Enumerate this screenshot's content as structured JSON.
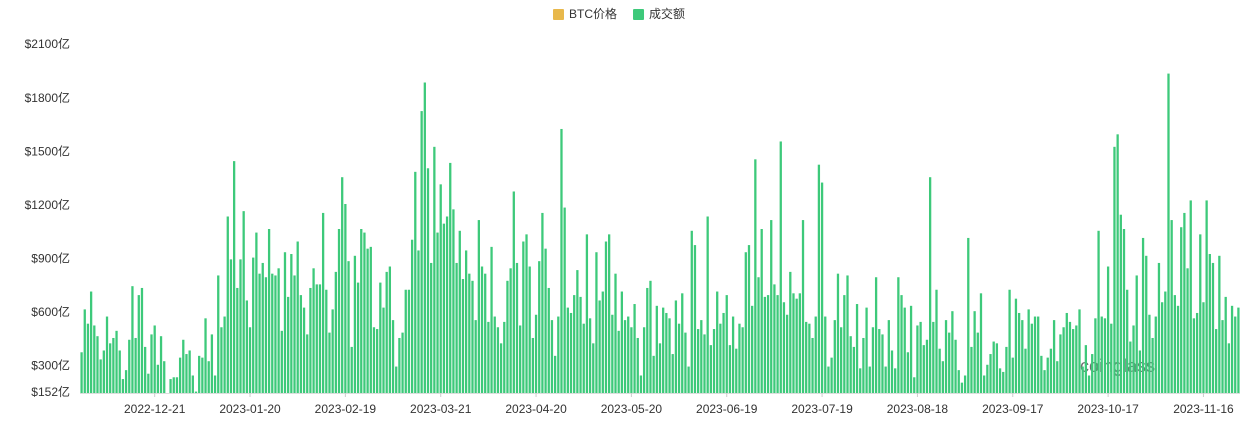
{
  "chart_data": {
    "type": "bar",
    "series": [
      {
        "name": "BTC价格",
        "color": "#e8b84b",
        "visible": false
      },
      {
        "name": "成交额",
        "color": "#3dc97a",
        "visible": true,
        "values": [
          380,
          620,
          540,
          720,
          530,
          470,
          340,
          390,
          580,
          430,
          460,
          500,
          390,
          230,
          280,
          450,
          750,
          460,
          700,
          740,
          410,
          260,
          480,
          530,
          310,
          470,
          330,
          152,
          230,
          240,
          240,
          350,
          450,
          370,
          390,
          250,
          160,
          360,
          350,
          570,
          330,
          480,
          250,
          810,
          520,
          580,
          1140,
          900,
          1450,
          740,
          900,
          1170,
          670,
          520,
          910,
          1050,
          820,
          880,
          800,
          1070,
          820,
          810,
          850,
          500,
          940,
          690,
          930,
          810,
          1000,
          700,
          630,
          480,
          740,
          850,
          760,
          760,
          1160,
          730,
          490,
          620,
          830,
          1070,
          1360,
          1210,
          890,
          410,
          920,
          770,
          1070,
          1050,
          960,
          970,
          520,
          510,
          770,
          630,
          830,
          860,
          560,
          300,
          460,
          490,
          730,
          730,
          1010,
          1390,
          950,
          1730,
          1890,
          1410,
          880,
          1530,
          1050,
          1320,
          1100,
          1140,
          1440,
          1180,
          880,
          1060,
          790,
          950,
          820,
          780,
          560,
          1120,
          860,
          820,
          550,
          970,
          580,
          520,
          430,
          550,
          780,
          850,
          1280,
          880,
          530,
          1000,
          1040,
          860,
          460,
          590,
          890,
          1160,
          960,
          740,
          560,
          360,
          580,
          1630,
          1190,
          630,
          600,
          700,
          840,
          690,
          540,
          1040,
          570,
          430,
          940,
          670,
          720,
          1000,
          1040,
          590,
          820,
          500,
          720,
          560,
          580,
          520,
          650,
          460,
          250,
          520,
          740,
          780,
          360,
          640,
          430,
          630,
          600,
          570,
          370,
          670,
          540,
          710,
          490,
          300,
          1060,
          980,
          510,
          560,
          480,
          1140,
          420,
          510,
          720,
          540,
          600,
          700,
          420,
          580,
          400,
          540,
          520,
          940,
          980,
          640,
          1460,
          800,
          1070,
          690,
          700,
          1120,
          760,
          700,
          1560,
          660,
          590,
          830,
          710,
          680,
          710,
          1120,
          550,
          540,
          460,
          580,
          1430,
          1330,
          580,
          300,
          350,
          560,
          820,
          520,
          700,
          810,
          470,
          410,
          650,
          290,
          460,
          630,
          300,
          520,
          800,
          510,
          480,
          300,
          560,
          390,
          290,
          800,
          700,
          630,
          380,
          640,
          240,
          530,
          550,
          420,
          450,
          1360,
          550,
          730,
          400,
          330,
          560,
          490,
          610,
          450,
          280,
          210,
          250,
          1020,
          410,
          610,
          490,
          710,
          250,
          310,
          370,
          440,
          430,
          290,
          270,
          410,
          730,
          350,
          680,
          600,
          560,
          400,
          620,
          540,
          580,
          580,
          360,
          280,
          350,
          400,
          560,
          330,
          480,
          520,
          600,
          550,
          510,
          530,
          620,
          300,
          420,
          250,
          370,
          570,
          1060,
          580,
          570,
          860,
          540,
          1530,
          1600,
          1150,
          1070,
          730,
          440,
          530,
          810,
          390,
          1020,
          920,
          590,
          460,
          580,
          880,
          660,
          720,
          1940,
          1120,
          700,
          640,
          1080,
          1160,
          850,
          1230,
          570,
          600,
          1040,
          660,
          1230,
          930,
          880,
          510,
          920,
          560,
          690,
          430,
          640,
          580,
          630
        ]
      }
    ],
    "categories": [
      null,
      null,
      null,
      null,
      null,
      null,
      null,
      null,
      null,
      null,
      null,
      null,
      null,
      null,
      null,
      null,
      null,
      null,
      null,
      null,
      null,
      null,
      null,
      "2022-12-21",
      null,
      null,
      null,
      null,
      null,
      null,
      null,
      null,
      null,
      null,
      null,
      null,
      null,
      null,
      null,
      null,
      null,
      null,
      null,
      null,
      null,
      null,
      null,
      null,
      null,
      null,
      null,
      null,
      null,
      "2023-01-20",
      null,
      null,
      null,
      null,
      null,
      null,
      null,
      null,
      null,
      null,
      null,
      null,
      null,
      null,
      null,
      null,
      null,
      null,
      null,
      null,
      null,
      null,
      null,
      null,
      null,
      null,
      null,
      null,
      null,
      "2023-02-19",
      null,
      null,
      null,
      null,
      null,
      null,
      null,
      null,
      null,
      null,
      null,
      null,
      null,
      null,
      null,
      null,
      null,
      null,
      null,
      null,
      null,
      null,
      null,
      null,
      null,
      null,
      null,
      null,
      null,
      "2023-03-21",
      null,
      null,
      null,
      null,
      null,
      null,
      null,
      null,
      null,
      null,
      null,
      null,
      null,
      null,
      null,
      null,
      null,
      null,
      null,
      null,
      null,
      null,
      null,
      null,
      null,
      null,
      null,
      null,
      null,
      "2023-04-20",
      null,
      null,
      null,
      null,
      null,
      null,
      null,
      null,
      null,
      null,
      null,
      null,
      null,
      null,
      null,
      null,
      null,
      null,
      null,
      null,
      null,
      null,
      null,
      null,
      null,
      null,
      null,
      null,
      null,
      "2023-05-20",
      null,
      null,
      null,
      null,
      null,
      null,
      null,
      null,
      null,
      null,
      null,
      null,
      null,
      null,
      null,
      null,
      null,
      null,
      null,
      null,
      null,
      null,
      null,
      null,
      null,
      null,
      null,
      null,
      null,
      "2023-06-19",
      null,
      null,
      null,
      null,
      null,
      null,
      null,
      null,
      null,
      null,
      null,
      null,
      null,
      null,
      null,
      null,
      null,
      null,
      null,
      null,
      null,
      null,
      null,
      null,
      null,
      null,
      null,
      null,
      null,
      "2023-07-19",
      null,
      null,
      null,
      null,
      null,
      null,
      null,
      null,
      null,
      null,
      null,
      null,
      null,
      null,
      null,
      null,
      null,
      null,
      null,
      null,
      null,
      null,
      null,
      null,
      null,
      null,
      null,
      null,
      null,
      "2023-08-18",
      null,
      null,
      null,
      null,
      null,
      null,
      null,
      null,
      null,
      null,
      null,
      null,
      null,
      null,
      null,
      null,
      null,
      null,
      null,
      null,
      null,
      null,
      null,
      null,
      null,
      null,
      null,
      null,
      null,
      "2023-09-17",
      null,
      null,
      null,
      null,
      null,
      null,
      null,
      null,
      null,
      null,
      null,
      null,
      null,
      null,
      null,
      null,
      null,
      null,
      null,
      null,
      null,
      null,
      null,
      null,
      null,
      null,
      null,
      null,
      null,
      "2023-10-17",
      null,
      null,
      null,
      null,
      null,
      null,
      null,
      null,
      null,
      null,
      null,
      null,
      null,
      null,
      null,
      null,
      null,
      null,
      null,
      null,
      null,
      null,
      null,
      null,
      null,
      null,
      null,
      null,
      null,
      "2023-11-16",
      null,
      null,
      null,
      null,
      null,
      null,
      null,
      null,
      null,
      null,
      null
    ],
    "ylim": [
      152,
      2100
    ],
    "yticks": [
      {
        "value": 152,
        "label": "$152亿"
      },
      {
        "value": 300,
        "label": "$300亿"
      },
      {
        "value": 600,
        "label": "$600亿"
      },
      {
        "value": 900,
        "label": "$900亿"
      },
      {
        "value": 1200,
        "label": "$1200亿"
      },
      {
        "value": 1500,
        "label": "$1500亿"
      },
      {
        "value": 1800,
        "label": "$1800亿"
      },
      {
        "value": 2100,
        "label": "$2100亿"
      }
    ],
    "grid": false,
    "legend": "top",
    "watermark": "coinglass"
  }
}
